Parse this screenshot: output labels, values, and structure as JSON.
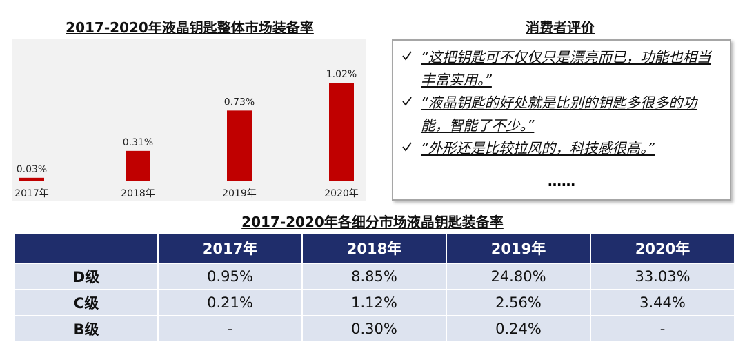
{
  "chart_data": {
    "type": "bar",
    "title": "2017-2020年液晶钥匙整体市场装备率",
    "categories": [
      "2017年",
      "2018年",
      "2019年",
      "2020年"
    ],
    "values": [
      0.03,
      0.31,
      0.73,
      1.02
    ],
    "value_labels": [
      "0.03%",
      "0.31%",
      "0.73%",
      "1.02%"
    ],
    "color": "#c00000"
  },
  "reviews": {
    "title": "消费者评价",
    "items": [
      "“这把钥匙可不仅仅只是漂亮而已，功能也相当丰富实用。”",
      "“液晶钥匙的好处就是比别的钥匙多很多的功能，智能了不少。”",
      "“外形还是比较拉风的，科技感很高。”"
    ],
    "ellipsis": "……"
  },
  "table": {
    "title": "2017-2020年各细分市场液晶钥匙装备率",
    "columns": [
      "2017年",
      "2018年",
      "2019年",
      "2020年"
    ],
    "rows": [
      {
        "label": "D级",
        "cells": [
          "0.95%",
          "8.85%",
          "24.80%",
          "33.03%"
        ]
      },
      {
        "label": "C级",
        "cells": [
          "0.21%",
          "1.12%",
          "2.56%",
          "3.44%"
        ]
      },
      {
        "label": "B级",
        "cells": [
          "-",
          "0.30%",
          "0.24%",
          "-"
        ]
      }
    ]
  }
}
